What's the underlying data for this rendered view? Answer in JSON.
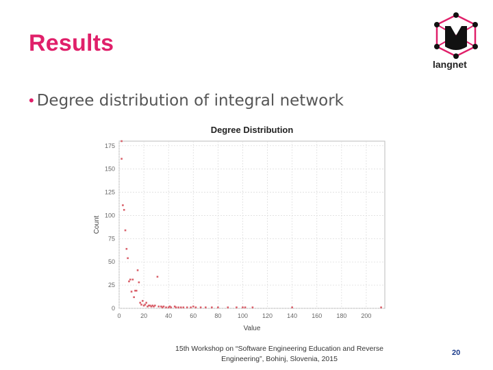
{
  "slide": {
    "title": "Results",
    "bullet": "Degree distribution of integral network",
    "footer_line1": "15th Workshop on “Software Engineering Education and Reverse",
    "footer_line2": "Engineering”, Bohinj, Slovenia, 2015",
    "page_number": "20"
  },
  "logo": {
    "name": "langnet",
    "icon": "langnet-logo-icon",
    "accent": "#e0206a"
  },
  "colors": {
    "title": "#e0206a",
    "points": "#d9606a",
    "page_number": "#1a3a8a"
  },
  "chart_data": {
    "type": "scatter",
    "title": "Degree Distribution",
    "xlabel": "Value",
    "ylabel": "Count",
    "xlim": [
      0,
      215
    ],
    "ylim": [
      0,
      180
    ],
    "xticks": [
      0,
      20,
      40,
      60,
      80,
      100,
      120,
      140,
      160,
      180,
      200
    ],
    "yticks": [
      0,
      25,
      50,
      75,
      100,
      125,
      150,
      175
    ],
    "grid": true,
    "points": [
      [
        2,
        180
      ],
      [
        2,
        161
      ],
      [
        3,
        111
      ],
      [
        4,
        106
      ],
      [
        5,
        84
      ],
      [
        6,
        64
      ],
      [
        7,
        54
      ],
      [
        8,
        29
      ],
      [
        9,
        31
      ],
      [
        10,
        18
      ],
      [
        11,
        31
      ],
      [
        12,
        12
      ],
      [
        13,
        19
      ],
      [
        14,
        19
      ],
      [
        15,
        41
      ],
      [
        16,
        28
      ],
      [
        17,
        6
      ],
      [
        18,
        4
      ],
      [
        19,
        8
      ],
      [
        20,
        3
      ],
      [
        21,
        4
      ],
      [
        22,
        6
      ],
      [
        23,
        2
      ],
      [
        24,
        3
      ],
      [
        25,
        3
      ],
      [
        26,
        2
      ],
      [
        27,
        3
      ],
      [
        28,
        2
      ],
      [
        29,
        3
      ],
      [
        31,
        34
      ],
      [
        32,
        2
      ],
      [
        34,
        2
      ],
      [
        35,
        1
      ],
      [
        36,
        2
      ],
      [
        38,
        1
      ],
      [
        40,
        1
      ],
      [
        41,
        2
      ],
      [
        42,
        1
      ],
      [
        45,
        2
      ],
      [
        46,
        1
      ],
      [
        48,
        1
      ],
      [
        50,
        1
      ],
      [
        52,
        1
      ],
      [
        55,
        1
      ],
      [
        58,
        1
      ],
      [
        60,
        2
      ],
      [
        62,
        1
      ],
      [
        66,
        1
      ],
      [
        70,
        1
      ],
      [
        75,
        1
      ],
      [
        80,
        1
      ],
      [
        88,
        1
      ],
      [
        95,
        1
      ],
      [
        100,
        1
      ],
      [
        102,
        1
      ],
      [
        108,
        1
      ],
      [
        140,
        1
      ],
      [
        212,
        1
      ]
    ]
  }
}
